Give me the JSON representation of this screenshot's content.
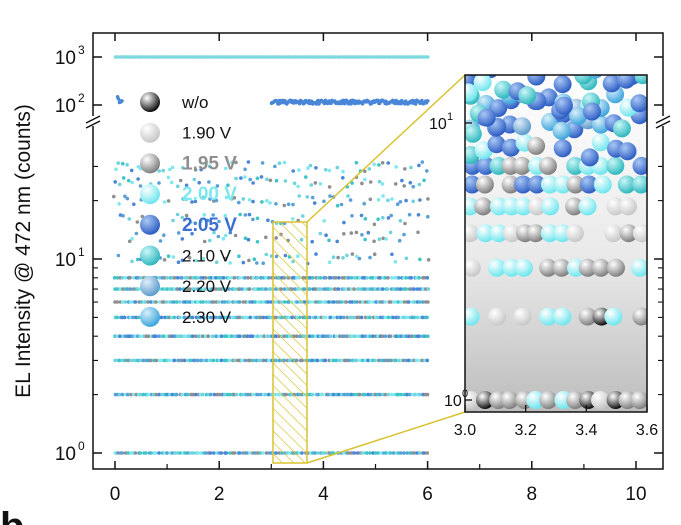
{
  "panel_letter": "b",
  "chart_data": [
    {
      "type": "scatter",
      "ylabel": "EL Intensity @ 472 nm (counts)",
      "yscale": "log-broken",
      "ylim": [
        0.9,
        1200
      ],
      "axis_break": [
        40,
        80
      ],
      "xlim": [
        -0.3,
        10.5
      ],
      "xticks": [
        "0",
        "2",
        "4",
        "6",
        "8",
        "10"
      ],
      "yticks": [
        "10",
        "10",
        "10",
        "10"
      ],
      "ytick_exponents": [
        "0",
        "1",
        "2",
        "3"
      ],
      "legend": {
        "placement": "upper-left",
        "entries": [
          {
            "label": "w/o",
            "color": "#111111",
            "emphasis": false
          },
          {
            "label": "1.90 V",
            "color": "#d6d6d6",
            "emphasis": false
          },
          {
            "label": "1.95 V",
            "color": "#8f8f8f",
            "emphasis": true
          },
          {
            "label": "2.00 V",
            "color": "#7fe8ef",
            "emphasis": true
          },
          {
            "label": "2.05 V",
            "color": "#3b6fd0",
            "emphasis": true
          },
          {
            "label": "2.10 V",
            "color": "#3fc4c8",
            "emphasis": false
          },
          {
            "label": "2.20 V",
            "color": "#6aa8d4",
            "emphasis": false
          },
          {
            "label": "2.30 V",
            "color": "#4faee0",
            "emphasis": false
          }
        ]
      },
      "series": [
        {
          "color": "#6ed3dc",
          "y_levels": [
            1,
            2,
            3,
            4,
            5,
            6,
            7,
            8,
            10,
            13,
            16,
            20,
            25,
            30
          ],
          "x_range": [
            0,
            6
          ]
        },
        {
          "color": "#4a86d8",
          "y_levels": [
            115
          ],
          "x_range": [
            3,
            6
          ]
        },
        {
          "color": "#7fd9e0",
          "y_levels": [
            1000
          ],
          "x_range": [
            0,
            6
          ]
        }
      ],
      "highlight_region": {
        "x": [
          3.0,
          3.6
        ],
        "y": [
          0.9,
          15
        ]
      }
    },
    {
      "type": "scatter",
      "role": "inset",
      "xlim": [
        3.0,
        3.6
      ],
      "xticks": [
        "3.0",
        "3.2",
        "3.4",
        "3.6"
      ],
      "yticks": [
        "10",
        "10"
      ],
      "ytick_exponents": [
        "0",
        "1"
      ],
      "ylim": [
        0.9,
        15
      ],
      "y_levels": [
        1,
        2,
        3,
        4,
        5,
        6,
        7,
        8,
        10,
        12
      ]
    }
  ]
}
